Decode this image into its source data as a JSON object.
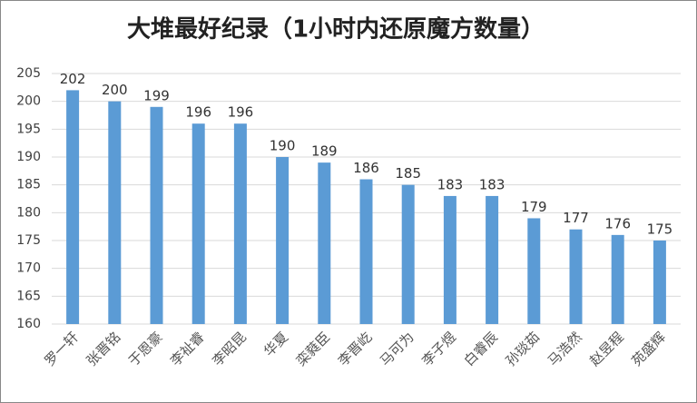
{
  "chart_data": {
    "type": "bar",
    "title": "大堆最好纪录（1小时内还原魔方数量）",
    "categories": [
      "罗一轩",
      "张晋铭",
      "于恩豪",
      "李祉睿",
      "李昭昆",
      "华夏",
      "栾蕤臣",
      "李晋屹",
      "马可为",
      "李子煜",
      "白睿辰",
      "孙琰茹",
      "马浩然",
      "赵昱程",
      "苑盛辉"
    ],
    "values": [
      202,
      200,
      199,
      196,
      196,
      190,
      189,
      186,
      185,
      183,
      183,
      179,
      177,
      176,
      175
    ],
    "color": "#5b9bd5",
    "ylim": [
      160,
      205
    ],
    "yticks": [
      160,
      165,
      170,
      175,
      180,
      185,
      190,
      195,
      200,
      205
    ],
    "grid": true
  }
}
